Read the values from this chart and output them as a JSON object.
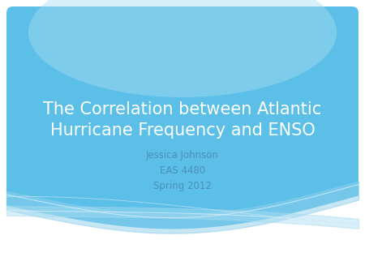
{
  "title_line1": "The Correlation between Atlantic",
  "title_line2": "Hurricane Frequency and ENSO",
  "subtitle_line1": "Jessica Johnson",
  "subtitle_line2": "EAS 4480",
  "subtitle_line3": "Spring 2012",
  "bg_color": "#5bbfe8",
  "outer_bg": "#ffffff",
  "title_color": "#ffffff",
  "subtitle_color": "#4a90b8",
  "title_fontsize": 15,
  "subtitle_fontsize": 8.5,
  "wave_fill_color": "#7ecfee",
  "wave_line_color": "#aadff5",
  "wave_white": "#ffffff"
}
